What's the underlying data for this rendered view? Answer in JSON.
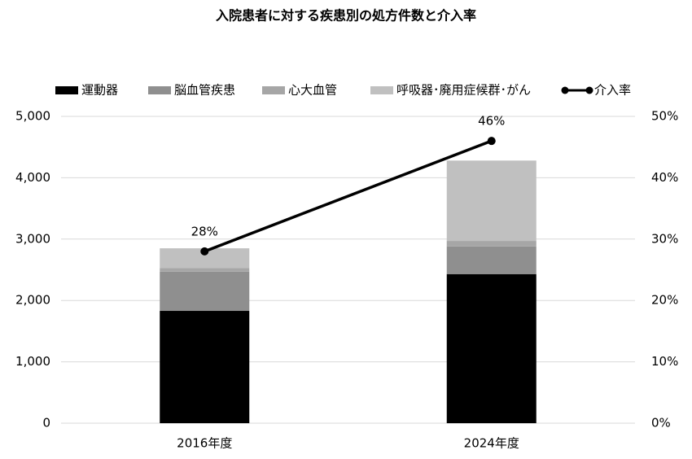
{
  "chart_data": {
    "type": "bar",
    "title": "入院患者に対する疾患別の処方件数と介入率",
    "categories": [
      "2016年度",
      "2024年度"
    ],
    "series": [
      {
        "name": "運動器",
        "color": "#000000",
        "values": [
          1830,
          2430
        ]
      },
      {
        "name": "脳血管疾患",
        "color": "#8f8f8f",
        "values": [
          640,
          450
        ]
      },
      {
        "name": "心大血管",
        "color": "#a6a6a6",
        "values": [
          60,
          90
        ]
      },
      {
        "name": "呼吸器･廃用症候群･がん",
        "color": "#c0c0c0",
        "values": [
          320,
          1310
        ]
      },
      {
        "name": "介入率",
        "color": "#000000",
        "type": "line",
        "axis": "y2",
        "values": [
          28,
          46
        ],
        "value_labels": [
          "28%",
          "46%"
        ]
      }
    ],
    "ylim": [
      0,
      5000
    ],
    "yticks": [
      0,
      {
        "value": 1000,
        "label": "1,000"
      },
      {
        "value": 2000,
        "label": "2,000"
      },
      {
        "value": 3000,
        "label": "3,000"
      },
      {
        "value": 4000,
        "label": "4,000"
      },
      {
        "value": 5000,
        "label": "5,000"
      }
    ],
    "y2lim": [
      0,
      50
    ],
    "y2ticks": [
      {
        "value": 0,
        "label": "0%"
      },
      {
        "value": 10,
        "label": "10%"
      },
      {
        "value": 20,
        "label": "20%"
      },
      {
        "value": 30,
        "label": "30%"
      },
      {
        "value": 40,
        "label": "40%"
      },
      {
        "value": 50,
        "label": "50%"
      }
    ],
    "grid": true,
    "legend": "top"
  }
}
